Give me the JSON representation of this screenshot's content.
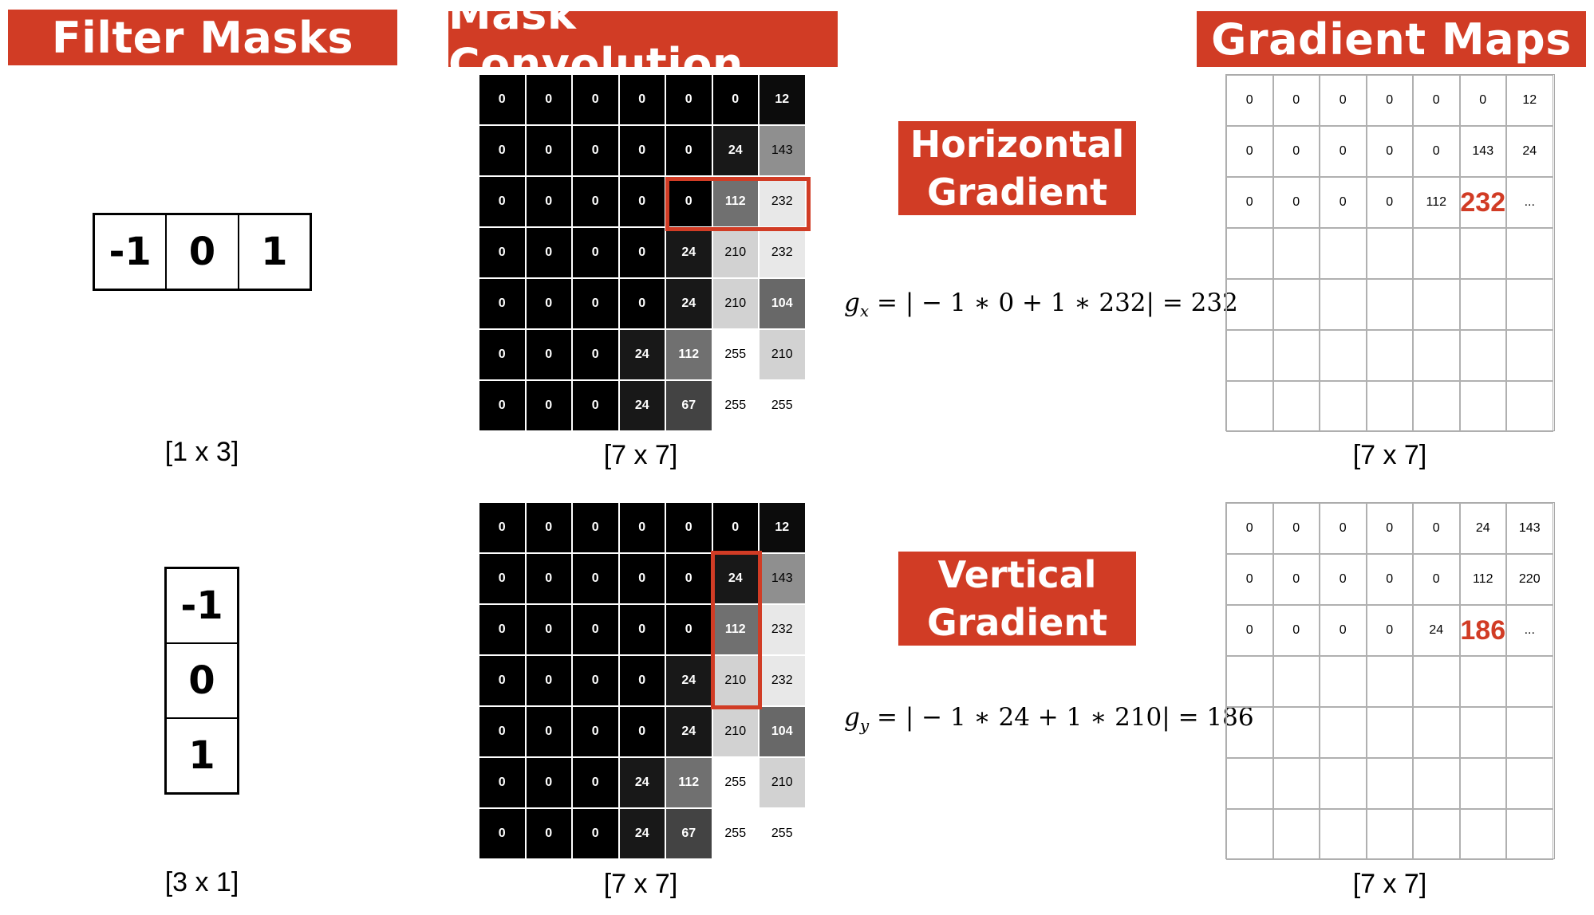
{
  "headers": {
    "filter_masks": "Filter Masks",
    "mask_convolution": "Mask Convolution",
    "gradient_maps": "Gradient Maps"
  },
  "kernels": {
    "horizontal": [
      "-1",
      "0",
      "1"
    ],
    "vertical": [
      "-1",
      "0",
      "1"
    ],
    "horizontal_dim": "[1 x 3]",
    "vertical_dim": "[3 x 1]"
  },
  "image": {
    "dim": "[7 x 7]",
    "values": [
      [
        0,
        0,
        0,
        0,
        0,
        0,
        12
      ],
      [
        0,
        0,
        0,
        0,
        0,
        24,
        143
      ],
      [
        0,
        0,
        0,
        0,
        0,
        112,
        232
      ],
      [
        0,
        0,
        0,
        0,
        24,
        210,
        232
      ],
      [
        0,
        0,
        0,
        0,
        24,
        210,
        104
      ],
      [
        0,
        0,
        0,
        24,
        112,
        255,
        210
      ],
      [
        0,
        0,
        0,
        24,
        67,
        255,
        255
      ]
    ]
  },
  "horizontal": {
    "label_line1": "Horizontal",
    "label_line2": "Gradient",
    "formula_var": "g",
    "formula_sub": "x",
    "formula_rhs": " = | − 1 ∗ 0 + 1 ∗ 232| = 232",
    "highlight": "row 3, columns 5–7",
    "map": [
      [
        "0",
        "0",
        "0",
        "0",
        "0",
        "0",
        "12"
      ],
      [
        "0",
        "0",
        "0",
        "0",
        "0",
        "143",
        "24"
      ],
      [
        "0",
        "0",
        "0",
        "0",
        "112",
        "232",
        "..."
      ],
      [
        "",
        "",
        "",
        "",
        "",
        "",
        ""
      ],
      [
        "",
        "",
        "",
        "",
        "",
        "",
        ""
      ],
      [
        "",
        "",
        "",
        "",
        "",
        "",
        ""
      ],
      [
        "",
        "",
        "",
        "",
        "",
        "",
        ""
      ]
    ],
    "emph_cell": [
      2,
      5
    ],
    "map_dim": "[7 x 7]"
  },
  "vertical": {
    "label_line1": "Vertical",
    "label_line2": "Gradient",
    "formula_var": "g",
    "formula_sub": "y",
    "formula_rhs": " = | − 1 ∗ 24 + 1 ∗ 210| = 186",
    "highlight": "column 6, rows 2–4",
    "map": [
      [
        "0",
        "0",
        "0",
        "0",
        "0",
        "24",
        "143"
      ],
      [
        "0",
        "0",
        "0",
        "0",
        "0",
        "112",
        "220"
      ],
      [
        "0",
        "0",
        "0",
        "0",
        "24",
        "186",
        "..."
      ],
      [
        "",
        "",
        "",
        "",
        "",
        "",
        ""
      ],
      [
        "",
        "",
        "",
        "",
        "",
        "",
        ""
      ],
      [
        "",
        "",
        "",
        "",
        "",
        "",
        ""
      ],
      [
        "",
        "",
        "",
        "",
        "",
        "",
        ""
      ]
    ],
    "emph_cell": [
      2,
      5
    ],
    "map_dim": "[7 x 7]"
  },
  "colors": {
    "accent": "#d13c25",
    "white": "#ffffff",
    "black": "#000000"
  }
}
